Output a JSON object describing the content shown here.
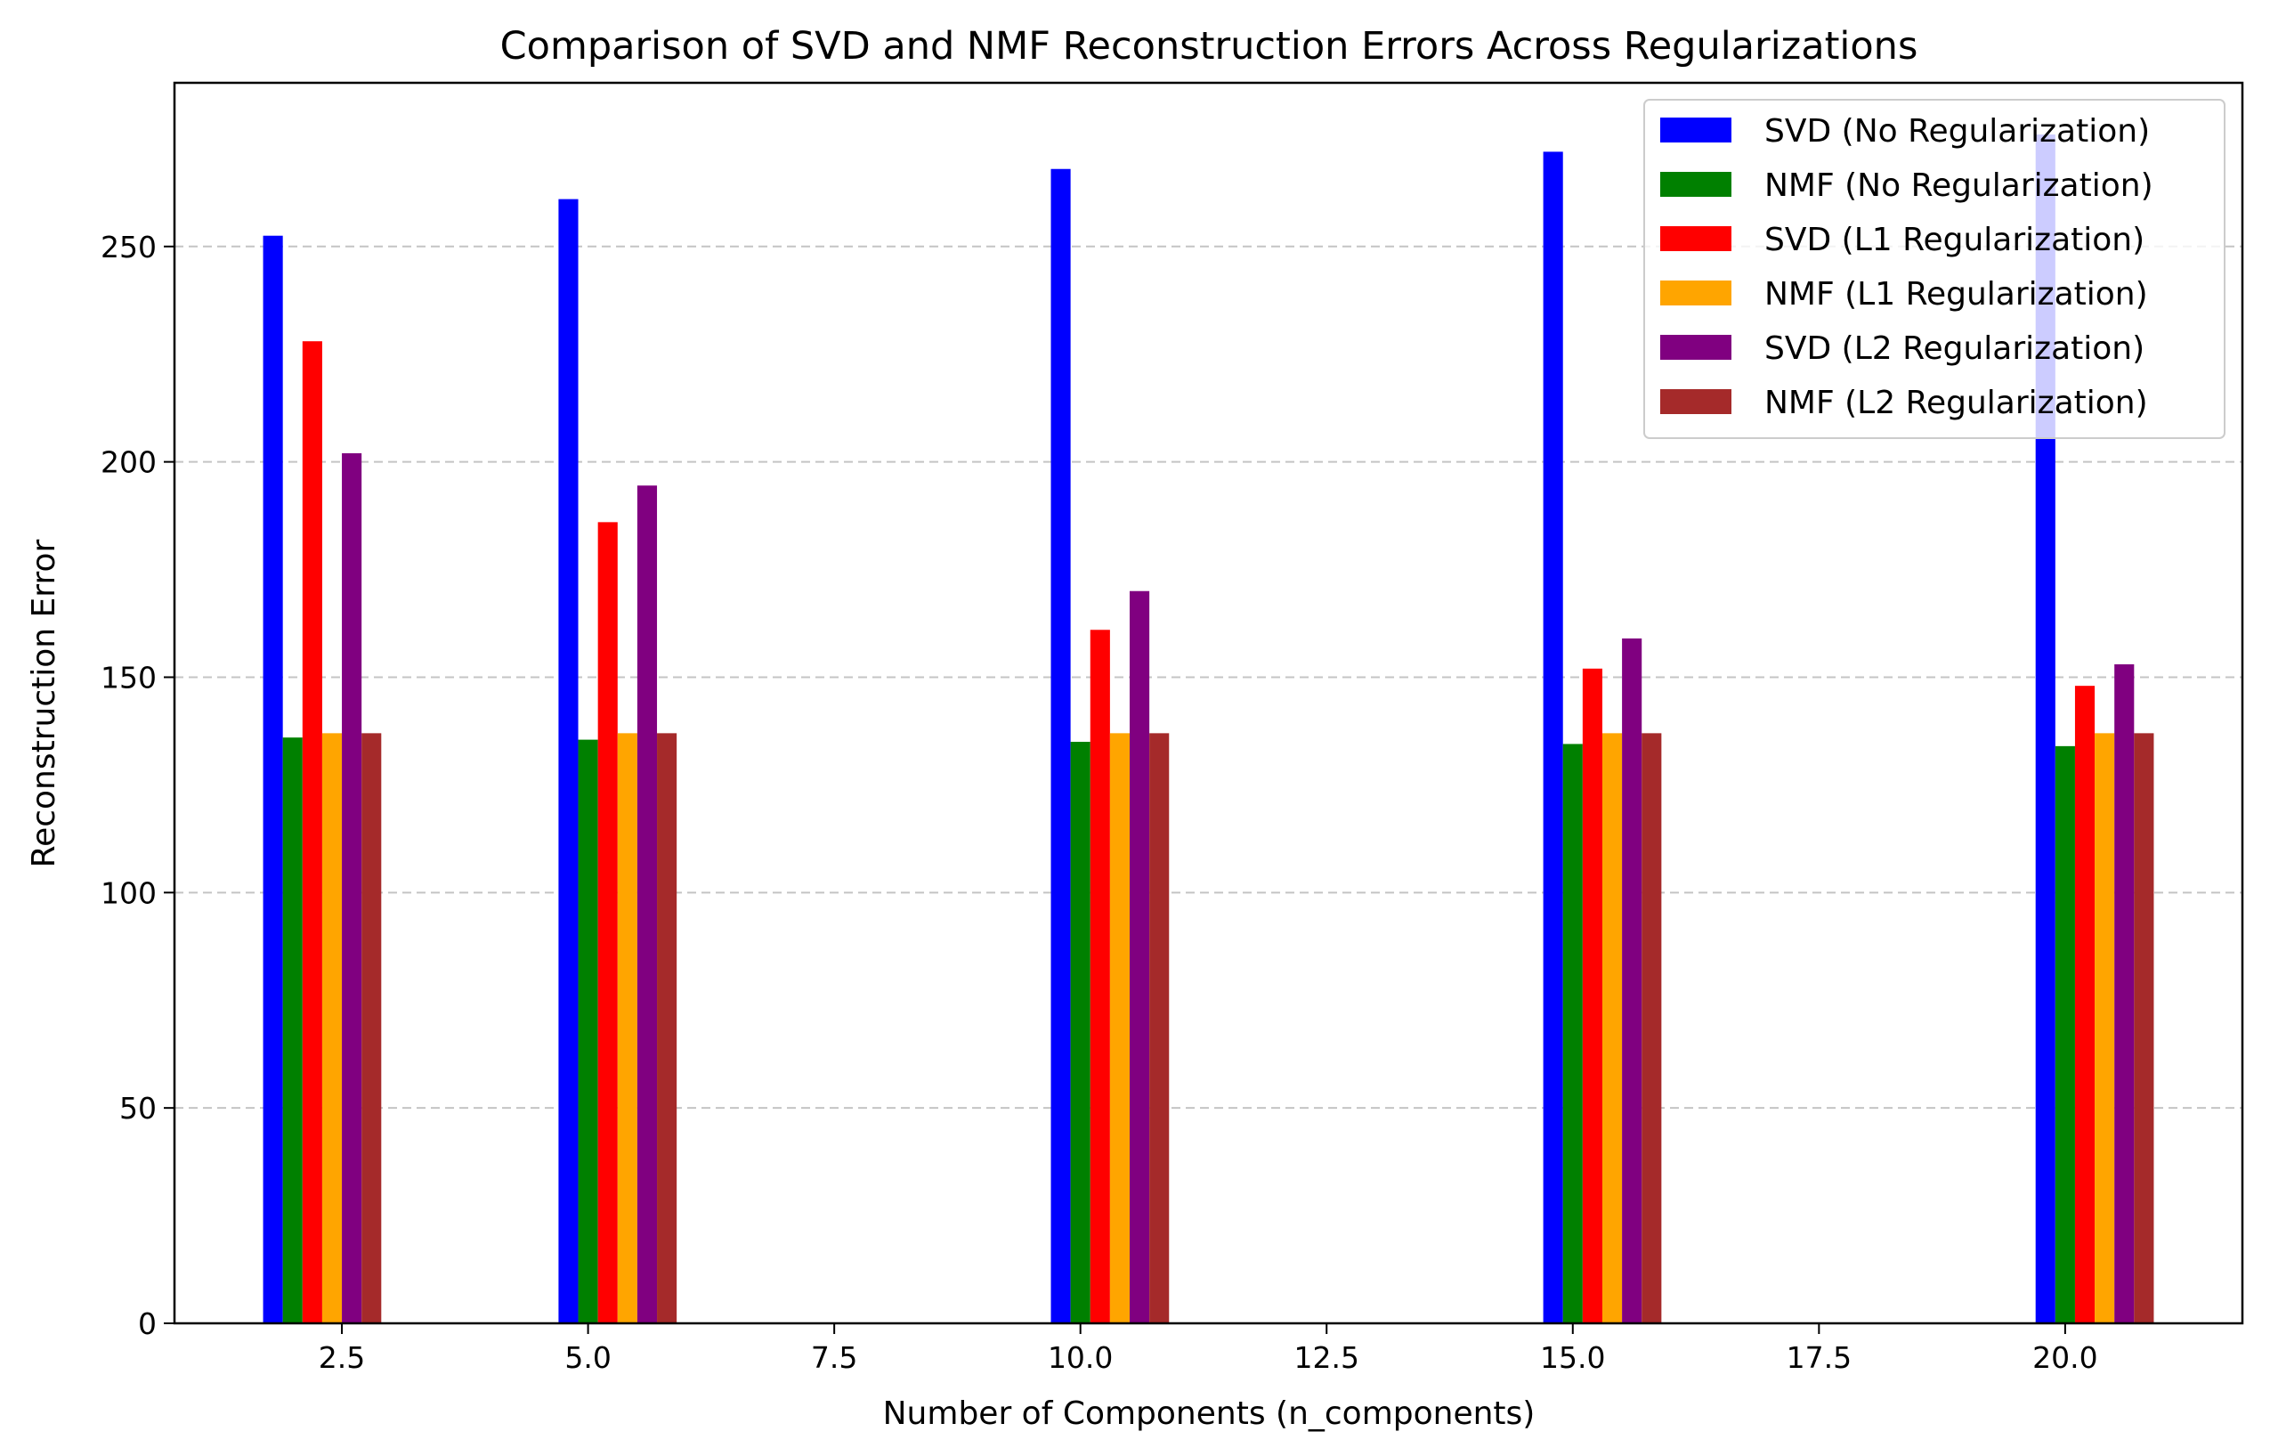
{
  "chart_data": {
    "type": "bar",
    "title": "Comparison of SVD and NMF Reconstruction Errors Across Regularizations",
    "xlabel": "Number of Components (n_components)",
    "ylabel": "Reconstruction Error",
    "xlim": [
      0.8,
      21.8
    ],
    "ylim": [
      0,
      288
    ],
    "xticks": [
      2.5,
      5.0,
      7.5,
      10.0,
      12.5,
      15.0,
      17.5,
      20.0
    ],
    "xtick_labels": [
      "2.5",
      "5.0",
      "7.5",
      "10.0",
      "12.5",
      "15.0",
      "17.5",
      "20.0"
    ],
    "yticks": [
      0,
      50,
      100,
      150,
      200,
      250
    ],
    "ytick_labels": [
      "0",
      "50",
      "100",
      "150",
      "200",
      "250"
    ],
    "grid": "y-dashed",
    "legend_position": "top-right",
    "x": [
      2,
      5,
      10,
      15,
      20
    ],
    "series": [
      {
        "name": "SVD (No Regularization)",
        "color": "#0000ff",
        "values": [
          252.5,
          261,
          268,
          272,
          276
        ]
      },
      {
        "name": "NMF (No Regularization)",
        "color": "#008000",
        "values": [
          136,
          135.5,
          135,
          134.5,
          134
        ]
      },
      {
        "name": "SVD (L1 Regularization)",
        "color": "#ff0000",
        "values": [
          228,
          186,
          161,
          152,
          148
        ]
      },
      {
        "name": "NMF (L1 Regularization)",
        "color": "#ffa500",
        "values": [
          137,
          137,
          137,
          137,
          137
        ]
      },
      {
        "name": "SVD (L2 Regularization)",
        "color": "#800080",
        "values": [
          202,
          194.5,
          170,
          159,
          153
        ]
      },
      {
        "name": "NMF (L2 Regularization)",
        "color": "#a52a2a",
        "values": [
          137,
          137,
          137,
          137,
          137
        ]
      }
    ]
  }
}
